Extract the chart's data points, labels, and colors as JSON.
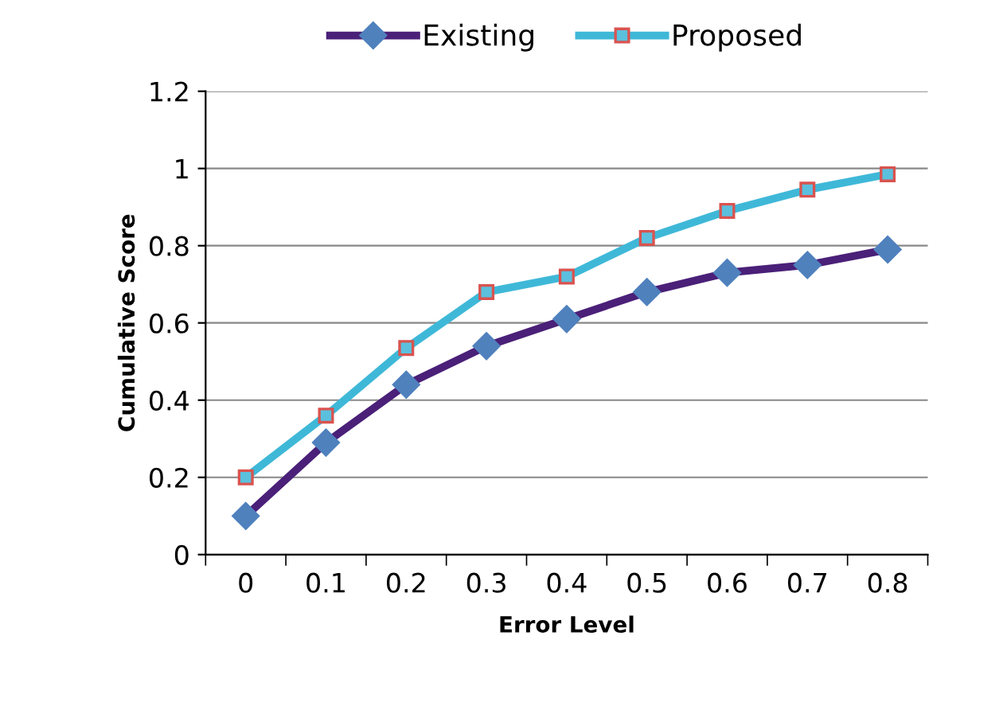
{
  "chart_data": {
    "type": "line",
    "xlabel": "Error Level",
    "ylabel": "Cumulative Score",
    "categories": [
      "0",
      "0.1",
      "0.2",
      "0.3",
      "0.4",
      "0.5",
      "0.6",
      "0.7",
      "0.8"
    ],
    "series": [
      {
        "name": "Existing",
        "color": "#4a2078",
        "marker": "diamond",
        "values": [
          0.1,
          0.29,
          0.44,
          0.54,
          0.61,
          0.68,
          0.73,
          0.75,
          0.79
        ]
      },
      {
        "name": "Proposed",
        "color": "#3fb8d8",
        "marker": "square",
        "values": [
          0.2,
          0.36,
          0.535,
          0.68,
          0.72,
          0.82,
          0.89,
          0.945,
          0.985
        ]
      }
    ],
    "ylim": [
      0,
      1.2
    ],
    "yticks": [
      0,
      0.2,
      0.4,
      0.6,
      0.8,
      1,
      1.2
    ],
    "grid": "y",
    "legend": "top",
    "line_style": "solid"
  }
}
